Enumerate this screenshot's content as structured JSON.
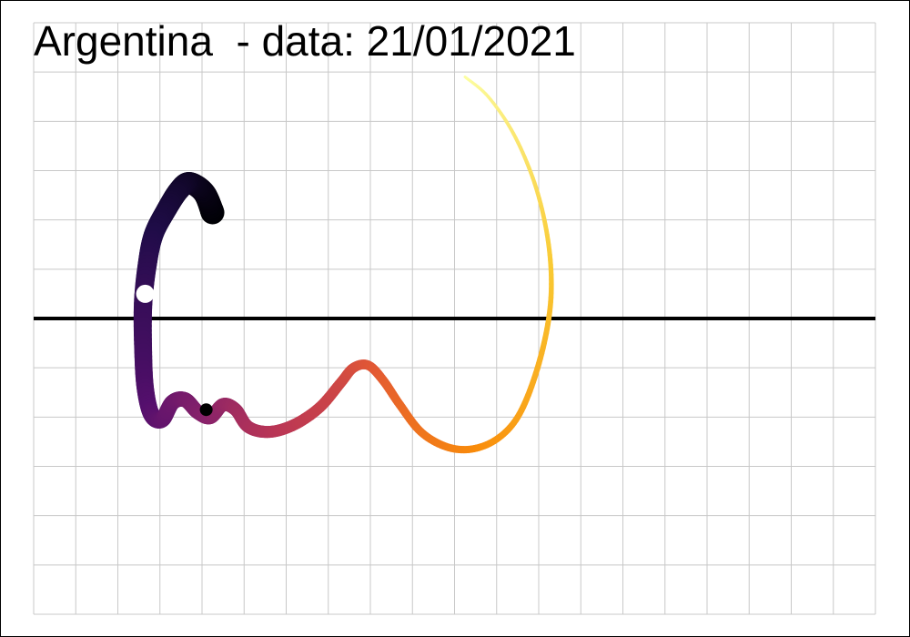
{
  "chart_data": {
    "type": "line",
    "title": "Argentina  - data: 21/01/2021",
    "xlabel": "",
    "ylabel": "",
    "xlim": [
      0,
      20
    ],
    "ylim": [
      -6,
      6
    ],
    "grid": true,
    "zero_line": {
      "y": 0,
      "color": "#000000"
    },
    "colormap": "inferno",
    "start_marker": {
      "x": 4.25,
      "y": 2.15,
      "color": "#000000"
    },
    "white_marker": {
      "x": 2.65,
      "y": 0.5,
      "color": "#ffffff"
    },
    "black_marker": {
      "x": 4.1,
      "y": -1.85,
      "color": "#000000"
    },
    "series": [
      {
        "name": "trajectory",
        "points": [
          [
            4.25,
            2.15
          ],
          [
            4.05,
            2.55
          ],
          [
            3.7,
            2.75
          ],
          [
            3.45,
            2.6
          ],
          [
            3.15,
            2.2
          ],
          [
            2.85,
            1.7
          ],
          [
            2.7,
            1.1
          ],
          [
            2.6,
            0.3
          ],
          [
            2.6,
            -0.6
          ],
          [
            2.65,
            -1.4
          ],
          [
            2.8,
            -1.95
          ],
          [
            3.05,
            -2.05
          ],
          [
            3.3,
            -1.7
          ],
          [
            3.6,
            -1.65
          ],
          [
            3.9,
            -1.9
          ],
          [
            4.2,
            -2.0
          ],
          [
            4.5,
            -1.75
          ],
          [
            4.8,
            -1.85
          ],
          [
            5.1,
            -2.2
          ],
          [
            5.6,
            -2.3
          ],
          [
            6.2,
            -2.15
          ],
          [
            6.8,
            -1.8
          ],
          [
            7.3,
            -1.3
          ],
          [
            7.6,
            -1.0
          ],
          [
            7.95,
            -0.95
          ],
          [
            8.3,
            -1.25
          ],
          [
            8.7,
            -1.75
          ],
          [
            9.2,
            -2.3
          ],
          [
            9.8,
            -2.6
          ],
          [
            10.4,
            -2.65
          ],
          [
            11.0,
            -2.45
          ],
          [
            11.5,
            -2.0
          ],
          [
            11.9,
            -1.2
          ],
          [
            12.2,
            -0.2
          ],
          [
            12.3,
            0.7
          ],
          [
            12.2,
            1.7
          ],
          [
            11.9,
            2.75
          ],
          [
            11.4,
            3.75
          ],
          [
            10.8,
            4.5
          ],
          [
            10.25,
            4.9
          ]
        ]
      }
    ]
  }
}
